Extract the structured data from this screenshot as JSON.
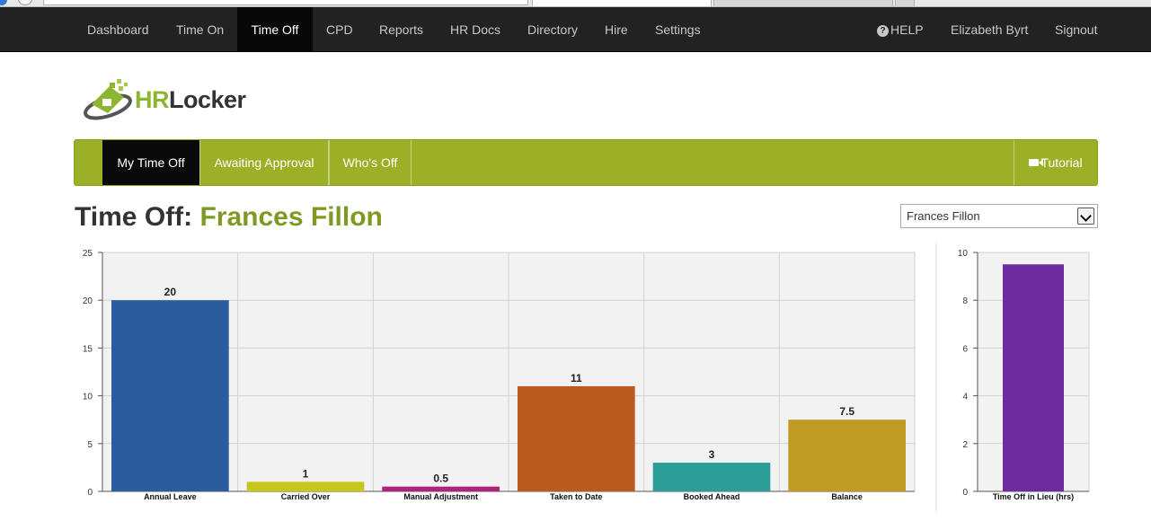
{
  "top_nav": {
    "items": [
      "Dashboard",
      "Time On",
      "Time Off",
      "CPD",
      "Reports",
      "HR Docs",
      "Directory",
      "Hire",
      "Settings"
    ],
    "active_index": 2,
    "help_label": "HELP",
    "user_name": "Elizabeth Byrt",
    "signout_label": "Signout"
  },
  "logo": {
    "text_hr": "HR",
    "text_locker": "Locker"
  },
  "sub_nav": {
    "tabs": [
      "My Time Off",
      "Awaiting Approval",
      "Who's Off"
    ],
    "active_index": 0,
    "tutorial_label": "Tutorial"
  },
  "page": {
    "title_prefix": "Time Off:",
    "employee_name": "Frances Fillon",
    "employee_select_value": "Frances Fillon"
  },
  "colors": {
    "subnav_green": "#9bb026",
    "name_green": "#7f9a24",
    "topnav_bg": "#222222"
  },
  "chart_data": [
    {
      "type": "bar",
      "categories": [
        "Annual Leave",
        "Carried Over",
        "Manual Adjustment",
        "Taken to Date",
        "Booked Ahead",
        "Balance"
      ],
      "values": [
        20,
        1,
        0.5,
        11,
        3,
        7.5
      ],
      "data_labels": [
        "20",
        "1",
        "0.5",
        "11",
        "3",
        "7.5"
      ],
      "colors": [
        "#2b5c9e",
        "#c8c81c",
        "#b0237a",
        "#bb5a1e",
        "#2a9d96",
        "#bf9b24"
      ],
      "ylim": [
        0,
        25
      ],
      "yticks": [
        0,
        5,
        10,
        15,
        20,
        25
      ],
      "grid": true
    },
    {
      "type": "bar",
      "categories": [
        "Time Off in Lieu (hrs)"
      ],
      "values": [
        9.5
      ],
      "colors": [
        "#6f2aa0"
      ],
      "ylim": [
        0,
        10
      ],
      "yticks": [
        0,
        2,
        4,
        6,
        8,
        10
      ],
      "grid": true
    }
  ]
}
